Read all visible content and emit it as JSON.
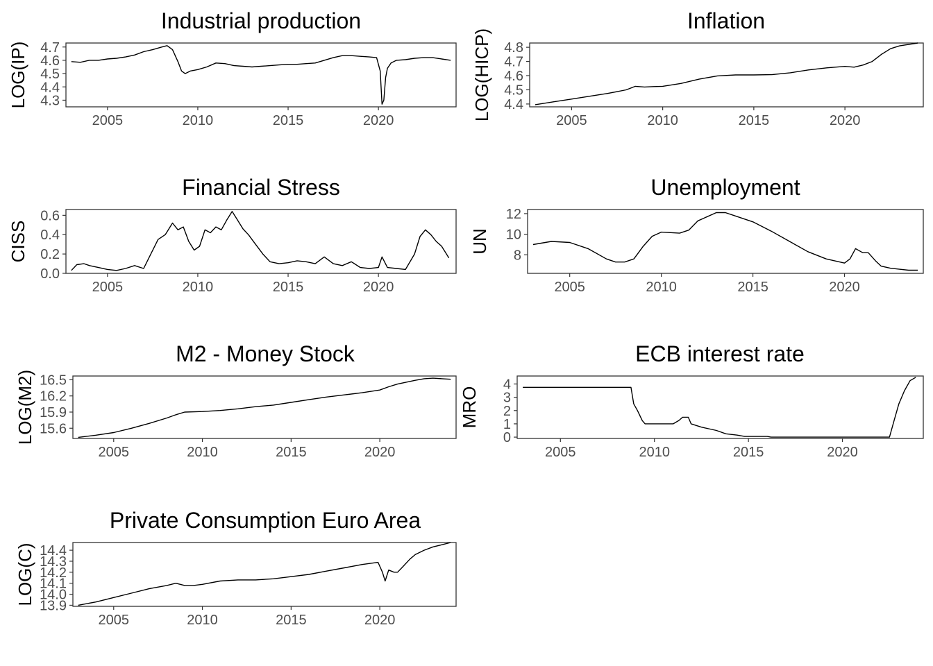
{
  "chart_data": [
    {
      "type": "line",
      "title": "Industrial production",
      "ylabel": "LOG(IP)",
      "xlabel": "",
      "xlim": [
        2002.7,
        2024.3
      ],
      "ylim": [
        4.25,
        4.73
      ],
      "xticks": [
        "2005",
        "2010",
        "2015",
        "2020"
      ],
      "yticks": [
        "4.3",
        "4.4",
        "4.5",
        "4.6",
        "4.7"
      ],
      "grid": false,
      "series": [
        {
          "x": [
            2003.0,
            2003.5,
            2004.0,
            2004.5,
            2005.0,
            2005.5,
            2006.0,
            2006.5,
            2007.0,
            2007.5,
            2008.0,
            2008.3,
            2008.6,
            2008.9,
            2009.1,
            2009.3,
            2009.6,
            2010.0,
            2010.5,
            2011.0,
            2011.5,
            2012.0,
            2012.5,
            2013.0,
            2013.5,
            2014.0,
            2014.5,
            2015.0,
            2015.5,
            2016.0,
            2016.5,
            2017.0,
            2017.5,
            2018.0,
            2018.5,
            2019.0,
            2019.5,
            2019.9,
            2020.1,
            2020.2,
            2020.3,
            2020.4,
            2020.5,
            2020.7,
            2021.0,
            2021.5,
            2022.0,
            2022.5,
            2023.0,
            2023.5,
            2024.0
          ],
          "y": [
            4.59,
            4.585,
            4.6,
            4.6,
            4.61,
            4.615,
            4.625,
            4.64,
            4.665,
            4.68,
            4.7,
            4.71,
            4.68,
            4.59,
            4.52,
            4.5,
            4.52,
            4.53,
            4.55,
            4.58,
            4.575,
            4.56,
            4.555,
            4.55,
            4.555,
            4.56,
            4.565,
            4.57,
            4.57,
            4.575,
            4.58,
            4.6,
            4.62,
            4.635,
            4.635,
            4.63,
            4.625,
            4.62,
            4.52,
            4.27,
            4.3,
            4.47,
            4.54,
            4.58,
            4.6,
            4.605,
            4.615,
            4.62,
            4.62,
            4.61,
            4.6
          ]
        }
      ]
    },
    {
      "type": "line",
      "title": "Inflation",
      "ylabel": "LOG(HICP)",
      "xlabel": "",
      "xlim": [
        2002.7,
        2024.3
      ],
      "ylim": [
        4.38,
        4.83
      ],
      "xticks": [
        "2005",
        "2010",
        "2015",
        "2020"
      ],
      "yticks": [
        "4.4",
        "4.5",
        "4.6",
        "4.7",
        "4.8"
      ],
      "grid": false,
      "series": [
        {
          "x": [
            2003.0,
            2004.0,
            2005.0,
            2006.0,
            2007.0,
            2008.0,
            2008.5,
            2009.0,
            2009.5,
            2010.0,
            2011.0,
            2012.0,
            2013.0,
            2014.0,
            2015.0,
            2016.0,
            2017.0,
            2018.0,
            2019.0,
            2020.0,
            2020.5,
            2021.0,
            2021.5,
            2022.0,
            2022.5,
            2023.0,
            2023.5,
            2024.0
          ],
          "y": [
            4.395,
            4.415,
            4.435,
            4.455,
            4.475,
            4.5,
            4.525,
            4.52,
            4.523,
            4.525,
            4.545,
            4.575,
            4.598,
            4.605,
            4.605,
            4.607,
            4.62,
            4.64,
            4.655,
            4.665,
            4.66,
            4.675,
            4.7,
            4.75,
            4.79,
            4.81,
            4.82,
            4.83
          ]
        }
      ]
    },
    {
      "type": "line",
      "title": "Financial Stress",
      "ylabel": "CISS",
      "xlabel": "",
      "xlim": [
        2002.7,
        2024.3
      ],
      "ylim": [
        0.0,
        0.66
      ],
      "xticks": [
        "2005",
        "2010",
        "2015",
        "2020"
      ],
      "yticks": [
        "0.0",
        "0.2",
        "0.4",
        "0.6"
      ],
      "grid": false,
      "series": [
        {
          "x": [
            2003.0,
            2003.3,
            2003.7,
            2004.0,
            2004.5,
            2005.0,
            2005.5,
            2006.0,
            2006.5,
            2007.0,
            2007.4,
            2007.8,
            2008.2,
            2008.6,
            2008.9,
            2009.2,
            2009.5,
            2009.8,
            2010.1,
            2010.4,
            2010.7,
            2011.0,
            2011.3,
            2011.6,
            2011.9,
            2012.2,
            2012.5,
            2012.8,
            2013.2,
            2013.6,
            2014.0,
            2014.5,
            2015.0,
            2015.5,
            2016.0,
            2016.5,
            2017.0,
            2017.5,
            2018.0,
            2018.5,
            2019.0,
            2019.5,
            2020.0,
            2020.2,
            2020.5,
            2021.0,
            2021.5,
            2022.0,
            2022.3,
            2022.6,
            2022.9,
            2023.2,
            2023.5,
            2023.9
          ],
          "y": [
            0.03,
            0.09,
            0.1,
            0.08,
            0.06,
            0.04,
            0.03,
            0.05,
            0.08,
            0.05,
            0.2,
            0.35,
            0.4,
            0.52,
            0.45,
            0.48,
            0.33,
            0.24,
            0.28,
            0.45,
            0.42,
            0.48,
            0.45,
            0.55,
            0.64,
            0.55,
            0.46,
            0.4,
            0.3,
            0.2,
            0.12,
            0.1,
            0.11,
            0.13,
            0.12,
            0.1,
            0.17,
            0.1,
            0.08,
            0.12,
            0.06,
            0.05,
            0.06,
            0.17,
            0.06,
            0.05,
            0.04,
            0.2,
            0.38,
            0.45,
            0.4,
            0.33,
            0.28,
            0.16
          ]
        }
      ]
    },
    {
      "type": "line",
      "title": "Unemployment",
      "ylabel": "UN",
      "xlabel": "",
      "xlim": [
        2002.7,
        2024.3
      ],
      "ylim": [
        6.2,
        12.4
      ],
      "xticks": [
        "2005",
        "2010",
        "2015",
        "2020"
      ],
      "yticks": [
        "8",
        "10",
        "12"
      ],
      "grid": false,
      "series": [
        {
          "x": [
            2003.0,
            2004.0,
            2005.0,
            2006.0,
            2007.0,
            2007.5,
            2008.0,
            2008.5,
            2009.0,
            2009.5,
            2010.0,
            2011.0,
            2011.5,
            2012.0,
            2013.0,
            2013.5,
            2014.0,
            2015.0,
            2016.0,
            2017.0,
            2018.0,
            2019.0,
            2020.0,
            2020.3,
            2020.6,
            2021.0,
            2021.3,
            2021.7,
            2022.0,
            2022.5,
            2023.0,
            2023.5,
            2024.0
          ],
          "y": [
            9.0,
            9.3,
            9.2,
            8.6,
            7.6,
            7.3,
            7.3,
            7.6,
            8.8,
            9.8,
            10.2,
            10.1,
            10.4,
            11.3,
            12.1,
            12.1,
            11.8,
            11.2,
            10.3,
            9.3,
            8.3,
            7.6,
            7.2,
            7.6,
            8.6,
            8.2,
            8.2,
            7.4,
            6.9,
            6.7,
            6.6,
            6.5,
            6.5
          ]
        }
      ]
    },
    {
      "type": "line",
      "title": "M2 - Money Stock",
      "ylabel": "LOG(M2)",
      "xlabel": "",
      "xlim": [
        2002.7,
        2024.3
      ],
      "ylim": [
        15.41,
        16.57
      ],
      "xticks": [
        "2005",
        "2010",
        "2015",
        "2020"
      ],
      "yticks": [
        "15.6",
        "15.9",
        "16.2",
        "16.5"
      ],
      "grid": false,
      "series": [
        {
          "x": [
            2003.0,
            2004.0,
            2005.0,
            2006.0,
            2007.0,
            2008.0,
            2008.5,
            2009.0,
            2010.0,
            2011.0,
            2012.0,
            2013.0,
            2014.0,
            2015.0,
            2016.0,
            2017.0,
            2018.0,
            2019.0,
            2020.0,
            2020.5,
            2021.0,
            2022.0,
            2022.5,
            2023.0,
            2023.5,
            2024.0
          ],
          "y": [
            15.43,
            15.47,
            15.52,
            15.6,
            15.69,
            15.79,
            15.85,
            15.9,
            15.91,
            15.93,
            15.96,
            16.0,
            16.03,
            16.08,
            16.13,
            16.18,
            16.22,
            16.26,
            16.31,
            16.37,
            16.42,
            16.49,
            16.52,
            16.53,
            16.52,
            16.51
          ]
        }
      ]
    },
    {
      "type": "line",
      "title": "ECB interest rate",
      "ylabel": "MRO",
      "xlabel": "",
      "xlim": [
        2002.7,
        2024.3
      ],
      "ylim": [
        -0.1,
        4.6
      ],
      "xticks": [
        "2005",
        "2010",
        "2015",
        "2020"
      ],
      "yticks": [
        "0",
        "1",
        "2",
        "3",
        "4"
      ],
      "grid": false,
      "series": [
        {
          "x": [
            2003.0,
            2004.0,
            2005.0,
            2006.0,
            2007.0,
            2008.0,
            2008.75,
            2008.9,
            2009.1,
            2009.35,
            2009.5,
            2010.0,
            2010.5,
            2011.0,
            2011.3,
            2011.5,
            2011.8,
            2011.95,
            2012.5,
            2013.3,
            2013.8,
            2014.4,
            2014.8,
            2015.0,
            2016.0,
            2016.2,
            2017.0,
            2018.0,
            2019.0,
            2020.0,
            2021.0,
            2022.0,
            2022.5,
            2022.75,
            2023.0,
            2023.3,
            2023.6,
            2023.9
          ],
          "y": [
            3.75,
            3.75,
            3.75,
            3.75,
            3.75,
            3.75,
            3.75,
            2.5,
            2.0,
            1.25,
            1.0,
            1.0,
            1.0,
            1.0,
            1.25,
            1.5,
            1.5,
            1.0,
            0.75,
            0.5,
            0.25,
            0.15,
            0.05,
            0.05,
            0.05,
            0.0,
            0.0,
            0.0,
            0.0,
            0.0,
            0.0,
            0.0,
            0.0,
            1.25,
            2.5,
            3.5,
            4.25,
            4.5
          ]
        }
      ]
    },
    {
      "type": "line",
      "title": "Private Consumption Euro Area",
      "ylabel": "LOG(C)",
      "xlabel": "",
      "xlim": [
        2002.7,
        2024.3
      ],
      "ylim": [
        13.89,
        14.47
      ],
      "xticks": [
        "2005",
        "2010",
        "2015",
        "2020"
      ],
      "yticks": [
        "13.9",
        "14.0",
        "14.1",
        "14.2",
        "14.3",
        "14.4"
      ],
      "grid": false,
      "series": [
        {
          "x": [
            2003.0,
            2004.0,
            2005.0,
            2006.0,
            2007.0,
            2008.0,
            2008.5,
            2009.0,
            2009.5,
            2010.0,
            2011.0,
            2012.0,
            2013.0,
            2014.0,
            2015.0,
            2016.0,
            2017.0,
            2018.0,
            2019.0,
            2019.9,
            2020.15,
            2020.3,
            2020.5,
            2020.8,
            2021.0,
            2021.3,
            2021.7,
            2022.0,
            2022.5,
            2023.0,
            2023.5,
            2024.0
          ],
          "y": [
            13.9,
            13.93,
            13.97,
            14.01,
            14.05,
            14.08,
            14.1,
            14.08,
            14.08,
            14.09,
            14.12,
            14.13,
            14.13,
            14.14,
            14.16,
            14.18,
            14.21,
            14.24,
            14.27,
            14.29,
            14.2,
            14.12,
            14.22,
            14.2,
            14.2,
            14.25,
            14.32,
            14.36,
            14.4,
            14.43,
            14.45,
            14.47
          ]
        }
      ]
    }
  ]
}
